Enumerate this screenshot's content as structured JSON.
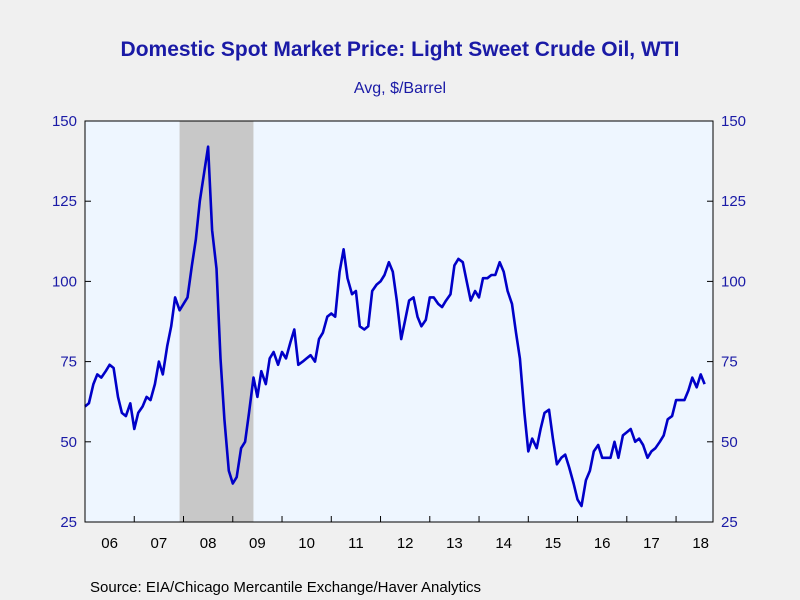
{
  "title": "Domestic Spot Market Price: Light Sweet Crude Oil, WTI",
  "subtitle": "Avg, $/Barrel",
  "source": "Source:  EIA/Chicago Mercantile Exchange/Haver Analytics",
  "colors": {
    "line": "#0000c8",
    "recession": "#c8c8c8",
    "plot_bg": "#eef6ff",
    "axis_text": "#1a1aa6"
  },
  "chart_data": {
    "type": "line",
    "title": "Domestic Spot Market Price: Light Sweet Crude Oil, WTI",
    "subtitle": "Avg, $/Barrel",
    "ylim": [
      25,
      150
    ],
    "xlim": [
      2006.0,
      2018.75
    ],
    "yticks": [
      25,
      50,
      75,
      100,
      125,
      150
    ],
    "xtick_labels": [
      {
        "label": "06",
        "x": 2006.5
      },
      {
        "label": "07",
        "x": 2007.5
      },
      {
        "label": "08",
        "x": 2008.5
      },
      {
        "label": "09",
        "x": 2009.5
      },
      {
        "label": "10",
        "x": 2010.5
      },
      {
        "label": "11",
        "x": 2011.5
      },
      {
        "label": "12",
        "x": 2012.5
      },
      {
        "label": "13",
        "x": 2013.5
      },
      {
        "label": "14",
        "x": 2014.5
      },
      {
        "label": "15",
        "x": 2015.5
      },
      {
        "label": "16",
        "x": 2016.5
      },
      {
        "label": "17",
        "x": 2017.5
      },
      {
        "label": "18",
        "x": 2018.5
      }
    ],
    "recession": [
      2007.92,
      2009.42
    ],
    "grid": false,
    "series": [
      {
        "values": [
          [
            2006.0,
            61
          ],
          [
            2006.08,
            62
          ],
          [
            2006.17,
            68
          ],
          [
            2006.25,
            71
          ],
          [
            2006.33,
            70
          ],
          [
            2006.42,
            72
          ],
          [
            2006.5,
            74
          ],
          [
            2006.58,
            73
          ],
          [
            2006.67,
            64
          ],
          [
            2006.75,
            59
          ],
          [
            2006.83,
            58
          ],
          [
            2006.92,
            62
          ],
          [
            2007.0,
            54
          ],
          [
            2007.08,
            59
          ],
          [
            2007.17,
            61
          ],
          [
            2007.25,
            64
          ],
          [
            2007.33,
            63
          ],
          [
            2007.42,
            68
          ],
          [
            2007.5,
            75
          ],
          [
            2007.58,
            71
          ],
          [
            2007.67,
            80
          ],
          [
            2007.75,
            86
          ],
          [
            2007.83,
            95
          ],
          [
            2007.92,
            91
          ],
          [
            2008.0,
            93
          ],
          [
            2008.08,
            95
          ],
          [
            2008.17,
            105
          ],
          [
            2008.25,
            113
          ],
          [
            2008.33,
            125
          ],
          [
            2008.42,
            134
          ],
          [
            2008.5,
            142
          ],
          [
            2008.58,
            116
          ],
          [
            2008.67,
            104
          ],
          [
            2008.75,
            76
          ],
          [
            2008.83,
            57
          ],
          [
            2008.92,
            41
          ],
          [
            2009.0,
            37
          ],
          [
            2009.08,
            39
          ],
          [
            2009.17,
            48
          ],
          [
            2009.25,
            50
          ],
          [
            2009.33,
            59
          ],
          [
            2009.42,
            70
          ],
          [
            2009.5,
            64
          ],
          [
            2009.58,
            72
          ],
          [
            2009.67,
            68
          ],
          [
            2009.75,
            76
          ],
          [
            2009.83,
            78
          ],
          [
            2009.92,
            74
          ],
          [
            2010.0,
            78
          ],
          [
            2010.08,
            76
          ],
          [
            2010.17,
            81
          ],
          [
            2010.25,
            85
          ],
          [
            2010.33,
            74
          ],
          [
            2010.42,
            75
          ],
          [
            2010.5,
            76
          ],
          [
            2010.58,
            77
          ],
          [
            2010.67,
            75
          ],
          [
            2010.75,
            82
          ],
          [
            2010.83,
            84
          ],
          [
            2010.92,
            89
          ],
          [
            2011.0,
            90
          ],
          [
            2011.08,
            89
          ],
          [
            2011.17,
            103
          ],
          [
            2011.25,
            110
          ],
          [
            2011.33,
            101
          ],
          [
            2011.42,
            96
          ],
          [
            2011.5,
            97
          ],
          [
            2011.58,
            86
          ],
          [
            2011.67,
            85
          ],
          [
            2011.75,
            86
          ],
          [
            2011.83,
            97
          ],
          [
            2011.92,
            99
          ],
          [
            2012.0,
            100
          ],
          [
            2012.08,
            102
          ],
          [
            2012.17,
            106
          ],
          [
            2012.25,
            103
          ],
          [
            2012.33,
            94
          ],
          [
            2012.42,
            82
          ],
          [
            2012.5,
            88
          ],
          [
            2012.58,
            94
          ],
          [
            2012.67,
            95
          ],
          [
            2012.75,
            89
          ],
          [
            2012.83,
            86
          ],
          [
            2012.92,
            88
          ],
          [
            2013.0,
            95
          ],
          [
            2013.08,
            95
          ],
          [
            2013.17,
            93
          ],
          [
            2013.25,
            92
          ],
          [
            2013.33,
            94
          ],
          [
            2013.42,
            96
          ],
          [
            2013.5,
            105
          ],
          [
            2013.58,
            107
          ],
          [
            2013.67,
            106
          ],
          [
            2013.75,
            100
          ],
          [
            2013.83,
            94
          ],
          [
            2013.92,
            97
          ],
          [
            2014.0,
            95
          ],
          [
            2014.08,
            101
          ],
          [
            2014.17,
            101
          ],
          [
            2014.25,
            102
          ],
          [
            2014.33,
            102
          ],
          [
            2014.42,
            106
          ],
          [
            2014.5,
            103
          ],
          [
            2014.58,
            97
          ],
          [
            2014.67,
            93
          ],
          [
            2014.75,
            84
          ],
          [
            2014.83,
            76
          ],
          [
            2014.92,
            59
          ],
          [
            2015.0,
            47
          ],
          [
            2015.08,
            51
          ],
          [
            2015.17,
            48
          ],
          [
            2015.25,
            54
          ],
          [
            2015.33,
            59
          ],
          [
            2015.42,
            60
          ],
          [
            2015.5,
            51
          ],
          [
            2015.58,
            43
          ],
          [
            2015.67,
            45
          ],
          [
            2015.75,
            46
          ],
          [
            2015.83,
            42
          ],
          [
            2015.92,
            37
          ],
          [
            2016.0,
            32
          ],
          [
            2016.08,
            30
          ],
          [
            2016.17,
            38
          ],
          [
            2016.25,
            41
          ],
          [
            2016.33,
            47
          ],
          [
            2016.42,
            49
          ],
          [
            2016.5,
            45
          ],
          [
            2016.58,
            45
          ],
          [
            2016.67,
            45
          ],
          [
            2016.75,
            50
          ],
          [
            2016.83,
            45
          ],
          [
            2016.92,
            52
          ],
          [
            2017.0,
            53
          ],
          [
            2017.08,
            54
          ],
          [
            2017.17,
            50
          ],
          [
            2017.25,
            51
          ],
          [
            2017.33,
            49
          ],
          [
            2017.42,
            45
          ],
          [
            2017.5,
            47
          ],
          [
            2017.58,
            48
          ],
          [
            2017.67,
            50
          ],
          [
            2017.75,
            52
          ],
          [
            2017.83,
            57
          ],
          [
            2017.92,
            58
          ],
          [
            2018.0,
            63
          ],
          [
            2018.08,
            63
          ],
          [
            2018.17,
            63
          ],
          [
            2018.25,
            66
          ],
          [
            2018.33,
            70
          ],
          [
            2018.42,
            67
          ],
          [
            2018.5,
            71
          ],
          [
            2018.58,
            68
          ]
        ]
      }
    ]
  }
}
